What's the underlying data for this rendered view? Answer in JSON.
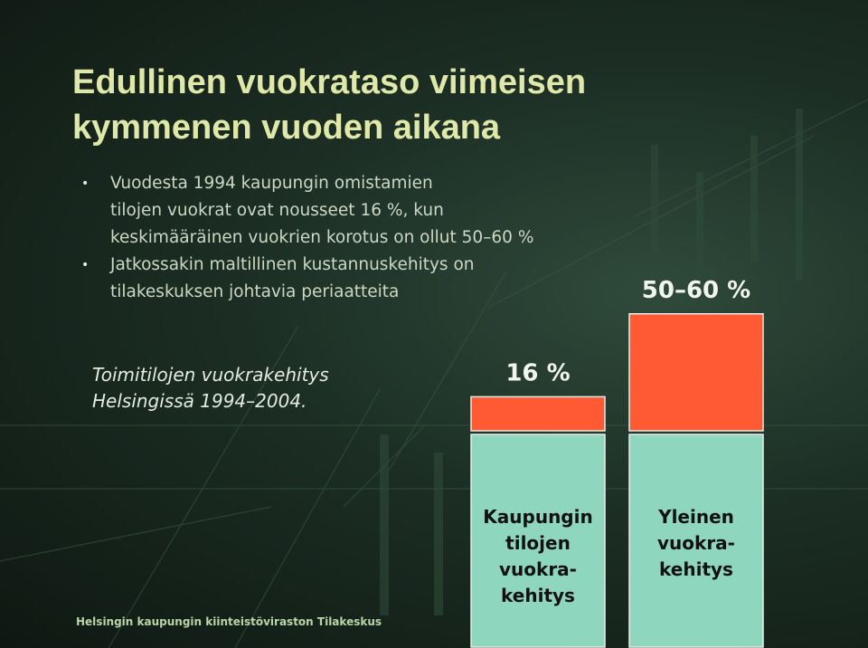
{
  "slide": {
    "title_line1": "Edullinen vuokrataso viimeisen",
    "title_line2": "kymmenen vuoden aikana",
    "bullets": [
      {
        "lines": [
          "Vuodesta 1994 kaupungin omistamien",
          "tilojen vuokrat ovat nousseet 16 %, kun",
          "keskimääräinen vuokrien korotus on ollut 50–60 %"
        ]
      },
      {
        "lines": [
          "Jatkossakin maltillinen kustannuskehitys on",
          "tilakeskuksen johtavia periaatteita"
        ]
      }
    ],
    "chart_caption_line1": "Toimitilojen vuokrakehitys",
    "chart_caption_line2": "Helsingissä 1994–2004.",
    "footer": "Helsingin kaupungin kiinteistöviraston Tilakeskus"
  },
  "chart_data": {
    "type": "bar",
    "stacked": true,
    "categories": [
      [
        "Kaupungin",
        "tilojen",
        "vuokra-",
        "kehitys"
      ],
      [
        "Yleinen",
        "vuokra-",
        "kehitys"
      ]
    ],
    "series": [
      {
        "values": [
          100,
          100
        ],
        "color": "#8fd6bf"
      },
      {
        "values": [
          16,
          55
        ],
        "color": "#ff5a33"
      }
    ],
    "data_labels": [
      "16 %",
      "50–60 %"
    ],
    "grid": false,
    "legend": "none"
  }
}
